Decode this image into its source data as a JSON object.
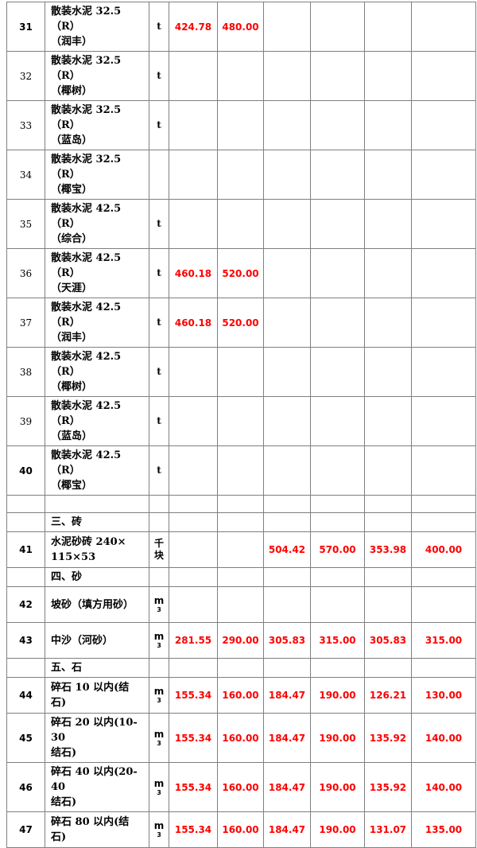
{
  "colors": {
    "price_text": "#ff0000",
    "grid_border": "#7f7f7f",
    "body_text": "#000000",
    "background": "#ffffff"
  },
  "table": {
    "price_column_count": 6,
    "rows": [
      {
        "type": "item",
        "no": "31",
        "no_bold": true,
        "name_lines": [
          "散装水泥 32.5（R）",
          "（润丰）"
        ],
        "unit_lines": [
          "t"
        ],
        "prices": [
          "424.78",
          "480.00",
          "",
          "",
          "",
          ""
        ]
      },
      {
        "type": "item",
        "no": "32",
        "no_bold": false,
        "name_lines": [
          "散装水泥 32.5（R）",
          "（椰树）"
        ],
        "unit_lines": [
          "t"
        ],
        "prices": [
          "",
          "",
          "",
          "",
          "",
          ""
        ]
      },
      {
        "type": "item",
        "no": "33",
        "no_bold": false,
        "name_lines": [
          "散装水泥 32.5（R）",
          "（蓝岛）"
        ],
        "unit_lines": [
          "t"
        ],
        "prices": [
          "",
          "",
          "",
          "",
          "",
          ""
        ]
      },
      {
        "type": "item",
        "no": "34",
        "no_bold": false,
        "name_lines": [
          "散装水泥 32.5（R）",
          "（椰宝）"
        ],
        "unit_lines": [],
        "prices": [
          "",
          "",
          "",
          "",
          "",
          ""
        ]
      },
      {
        "type": "item",
        "no": "35",
        "no_bold": false,
        "name_lines": [
          "散装水泥 42.5（R）",
          "（综合）"
        ],
        "unit_lines": [
          "t"
        ],
        "prices": [
          "",
          "",
          "",
          "",
          "",
          ""
        ]
      },
      {
        "type": "item",
        "no": "36",
        "no_bold": false,
        "name_lines": [
          "散装水泥 42.5（R）",
          "（天涯）"
        ],
        "unit_lines": [
          "t"
        ],
        "prices": [
          "460.18",
          "520.00",
          "",
          "",
          "",
          ""
        ]
      },
      {
        "type": "item",
        "no": "37",
        "no_bold": false,
        "name_lines": [
          "散装水泥 42.5（R）",
          "（润丰）"
        ],
        "unit_lines": [
          "t"
        ],
        "prices": [
          "460.18",
          "520.00",
          "",
          "",
          "",
          ""
        ]
      },
      {
        "type": "item",
        "no": "38",
        "no_bold": false,
        "name_lines": [
          "散装水泥 42.5（R）",
          "（椰树）"
        ],
        "unit_lines": [
          "t"
        ],
        "prices": [
          "",
          "",
          "",
          "",
          "",
          ""
        ]
      },
      {
        "type": "item",
        "no": "39",
        "no_bold": false,
        "name_lines": [
          "散装水泥 42.5（R）",
          "（蓝岛）"
        ],
        "unit_lines": [
          "t"
        ],
        "prices": [
          "",
          "",
          "",
          "",
          "",
          ""
        ]
      },
      {
        "type": "item",
        "no": "40",
        "no_bold": true,
        "name_lines": [
          "散装水泥 42.5（R）",
          "（椰宝）"
        ],
        "unit_lines": [
          "t"
        ],
        "prices": [
          "",
          "",
          "",
          "",
          "",
          ""
        ]
      },
      {
        "type": "empty"
      },
      {
        "type": "section",
        "name_lines": [
          "三、砖"
        ]
      },
      {
        "type": "item",
        "no": "41",
        "no_bold": true,
        "name_lines": [
          "水泥砂砖 240×",
          "115×53"
        ],
        "unit_lines": [
          "千",
          "块"
        ],
        "prices": [
          "",
          "",
          "504.42",
          "570.00",
          "353.98",
          "400.00"
        ]
      },
      {
        "type": "section",
        "name_lines": [
          "四、砂"
        ]
      },
      {
        "type": "item",
        "no": "42",
        "no_bold": true,
        "name_lines": [
          "坡砂（填方用砂）"
        ],
        "unit_lines": [
          "m",
          "3"
        ],
        "prices": [
          "",
          "",
          "",
          "",
          "",
          ""
        ]
      },
      {
        "type": "item",
        "no": "43",
        "no_bold": true,
        "name_lines": [
          "中沙（河砂）"
        ],
        "unit_lines": [
          "m",
          "3"
        ],
        "prices": [
          "281.55",
          "290.00",
          "305.83",
          "315.00",
          "305.83",
          "315.00"
        ]
      },
      {
        "type": "section",
        "name_lines": [
          "五、石"
        ]
      },
      {
        "type": "item",
        "no": "44",
        "no_bold": true,
        "name_lines": [
          "碎石 10 以内(结石)"
        ],
        "unit_lines": [
          "m",
          "3"
        ],
        "prices": [
          "155.34",
          "160.00",
          "184.47",
          "190.00",
          "126.21",
          "130.00"
        ]
      },
      {
        "type": "item",
        "no": "45",
        "no_bold": true,
        "name_lines": [
          "碎石 20 以内(10-30",
          "结石)"
        ],
        "unit_lines": [
          "m",
          "3"
        ],
        "prices": [
          "155.34",
          "160.00",
          "184.47",
          "190.00",
          "135.92",
          "140.00"
        ]
      },
      {
        "type": "item",
        "no": "46",
        "no_bold": true,
        "name_lines": [
          "碎石 40 以内(20-40",
          "结石)"
        ],
        "unit_lines": [
          "m",
          "3"
        ],
        "prices": [
          "155.34",
          "160.00",
          "184.47",
          "190.00",
          "135.92",
          "140.00"
        ]
      },
      {
        "type": "item",
        "no": "47",
        "no_bold": true,
        "name_lines": [
          "碎石 80 以内(结石)"
        ],
        "unit_lines": [
          "m",
          "3"
        ],
        "prices": [
          "155.34",
          "160.00",
          "184.47",
          "190.00",
          "131.07",
          "135.00"
        ]
      }
    ]
  }
}
